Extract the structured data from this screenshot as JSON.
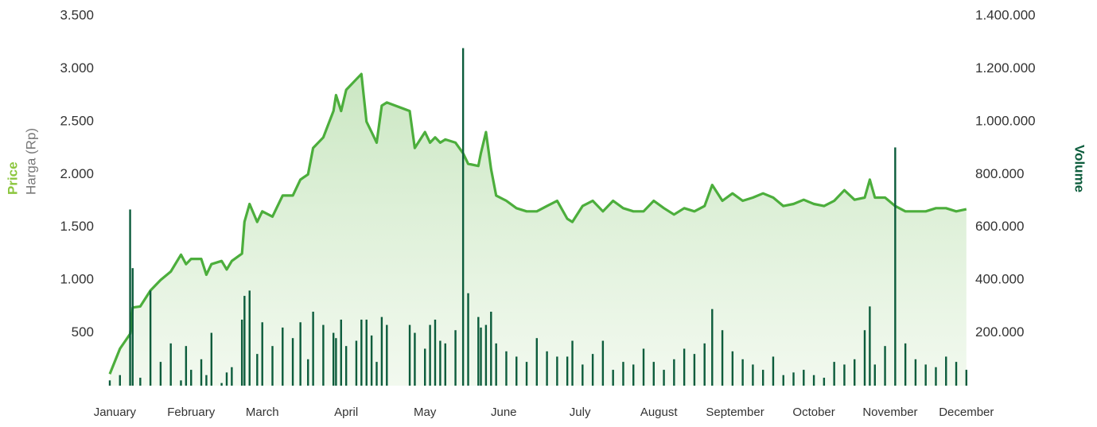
{
  "chart_data": {
    "type": "combo",
    "y_label_title": "Price",
    "y_label": "Harga (Rp)",
    "y2_label": "Volume",
    "xlim": [
      0,
      338
    ],
    "xticks": [
      {
        "value": 2,
        "label": "January"
      },
      {
        "value": 32,
        "label": "February"
      },
      {
        "value": 60,
        "label": "March"
      },
      {
        "value": 93,
        "label": "April"
      },
      {
        "value": 124,
        "label": "May"
      },
      {
        "value": 155,
        "label": "June"
      },
      {
        "value": 185,
        "label": "July"
      },
      {
        "value": 216,
        "label": "August"
      },
      {
        "value": 246,
        "label": "September"
      },
      {
        "value": 277,
        "label": "October"
      },
      {
        "value": 307,
        "label": "November"
      },
      {
        "value": 337,
        "label": "December"
      }
    ],
    "ylim": [
      0,
      3500
    ],
    "yticks": [
      500,
      {
        "value": 1000,
        "label": "1.000"
      },
      {
        "value": 1500,
        "label": "1.500"
      },
      {
        "value": 2000,
        "label": "2.000"
      },
      {
        "value": 2500,
        "label": "2.500"
      },
      {
        "value": 3000,
        "label": "3.000"
      },
      {
        "value": 3500,
        "label": "3.500"
      }
    ],
    "y2lim": [
      0,
      1400000
    ],
    "y2ticks": [
      {
        "value": 200000,
        "label": "200.000"
      },
      {
        "value": 400000,
        "label": "400.000"
      },
      {
        "value": 600000,
        "label": "600.000"
      },
      {
        "value": 800000,
        "label": "800.000"
      },
      {
        "value": 1000000,
        "label": "1.000.000"
      },
      {
        "value": 1200000,
        "label": "1.200.000"
      },
      {
        "value": 1400000,
        "label": "1.400.000"
      }
    ],
    "x": [
      0,
      4,
      8,
      9,
      12,
      16,
      20,
      24,
      28,
      30,
      32,
      36,
      38,
      40,
      44,
      46,
      48,
      52,
      53,
      55,
      58,
      60,
      64,
      68,
      72,
      75,
      78,
      80,
      84,
      88,
      89,
      91,
      93,
      97,
      99,
      101,
      103,
      105,
      107,
      109,
      118,
      120,
      124,
      126,
      128,
      130,
      132,
      136,
      139,
      141,
      145,
      146,
      148,
      150,
      152,
      156,
      160,
      164,
      168,
      172,
      176,
      180,
      182,
      186,
      190,
      194,
      198,
      202,
      206,
      210,
      214,
      218,
      222,
      226,
      230,
      234,
      237,
      241,
      245,
      249,
      253,
      257,
      261,
      265,
      269,
      273,
      277,
      281,
      285,
      289,
      293,
      297,
      299,
      301,
      305,
      309,
      313,
      317,
      321,
      325,
      329,
      333,
      337
    ],
    "series": [
      {
        "name": "Price",
        "type": "area",
        "axis": "y",
        "color": "#4cae3c",
        "values": [
          110,
          350,
          490,
          740,
          750,
          900,
          1000,
          1080,
          1240,
          1150,
          1200,
          1200,
          1050,
          1150,
          1180,
          1100,
          1180,
          1250,
          1550,
          1720,
          1550,
          1650,
          1600,
          1800,
          1800,
          1950,
          2000,
          2250,
          2350,
          2600,
          2750,
          2600,
          2800,
          2900,
          2950,
          2500,
          2400,
          2300,
          2650,
          2680,
          2600,
          2250,
          2400,
          2300,
          2350,
          2300,
          2330,
          2300,
          2200,
          2100,
          2080,
          2200,
          2400,
          2050,
          1800,
          1750,
          1680,
          1650,
          1650,
          1700,
          1750,
          1580,
          1550,
          1700,
          1750,
          1650,
          1750,
          1680,
          1650,
          1650,
          1750,
          1680,
          1620,
          1680,
          1650,
          1700,
          1900,
          1750,
          1820,
          1750,
          1780,
          1820,
          1780,
          1700,
          1720,
          1760,
          1720,
          1700,
          1750,
          1850,
          1760,
          1780,
          1950,
          1780,
          1780,
          1700,
          1650,
          1650,
          1650,
          1680,
          1680,
          1650,
          1670
        ]
      },
      {
        "name": "Volume",
        "type": "bar",
        "axis": "y2",
        "color": "#0c5c3c",
        "values": [
          20000,
          40000,
          667000,
          445000,
          30000,
          360000,
          90000,
          160000,
          20000,
          150000,
          60000,
          100000,
          40000,
          200000,
          10000,
          50000,
          70000,
          250000,
          340000,
          360000,
          120000,
          240000,
          150000,
          220000,
          180000,
          240000,
          100000,
          280000,
          230000,
          200000,
          180000,
          250000,
          150000,
          170000,
          250000,
          250000,
          190000,
          90000,
          260000,
          230000,
          230000,
          200000,
          140000,
          230000,
          250000,
          170000,
          160000,
          210000,
          1278000,
          350000,
          260000,
          220000,
          230000,
          280000,
          160000,
          130000,
          110000,
          90000,
          180000,
          130000,
          110000,
          110000,
          170000,
          80000,
          120000,
          170000,
          60000,
          90000,
          80000,
          140000,
          90000,
          60000,
          100000,
          140000,
          120000,
          160000,
          290000,
          210000,
          130000,
          100000,
          80000,
          60000,
          110000,
          40000,
          50000,
          60000,
          40000,
          30000,
          90000,
          80000,
          100000,
          210000,
          300000,
          80000,
          150000,
          902000,
          160000,
          100000,
          80000,
          70000,
          110000,
          90000,
          60000
        ]
      }
    ]
  }
}
